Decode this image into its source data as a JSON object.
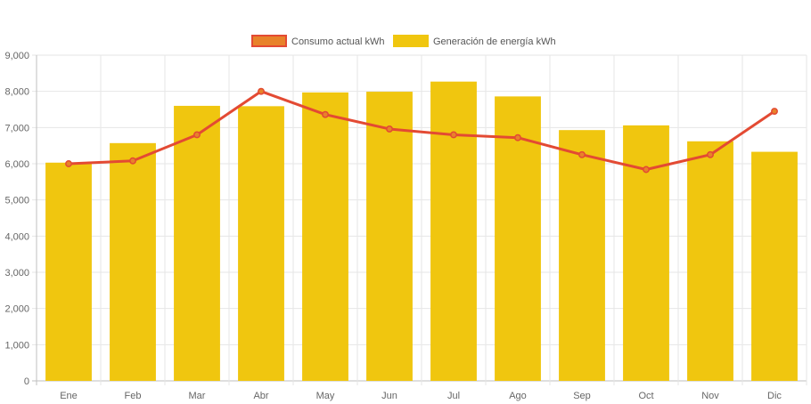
{
  "chart_data": {
    "type": "bar",
    "categories": [
      "Ene",
      "Feb",
      "Mar",
      "Abr",
      "May",
      "Jun",
      "Jul",
      "Ago",
      "Sep",
      "Oct",
      "Nov",
      "Dic"
    ],
    "series": [
      {
        "name": "Consumo actual kWh",
        "kind": "line",
        "color": "#e34a33",
        "legend_fill": "#e8822a",
        "values": [
          6000,
          6080,
          6800,
          8000,
          7360,
          6960,
          6800,
          6720,
          6250,
          5840,
          6250,
          7450
        ]
      },
      {
        "name": "Generación de energía kWh",
        "kind": "bar",
        "color": "#f0c60f",
        "values": [
          6030,
          6570,
          7600,
          7590,
          7970,
          7990,
          8270,
          7860,
          6930,
          7060,
          6620,
          6330
        ]
      }
    ],
    "y_ticks": [
      "0",
      "1,000",
      "2,000",
      "3,000",
      "4,000",
      "5,000",
      "6,000",
      "7,000",
      "8,000",
      "9,000"
    ],
    "ylim": [
      0,
      9000
    ],
    "grid": true,
    "legend_position": "top-center",
    "title": "",
    "xlabel": "",
    "ylabel": ""
  }
}
